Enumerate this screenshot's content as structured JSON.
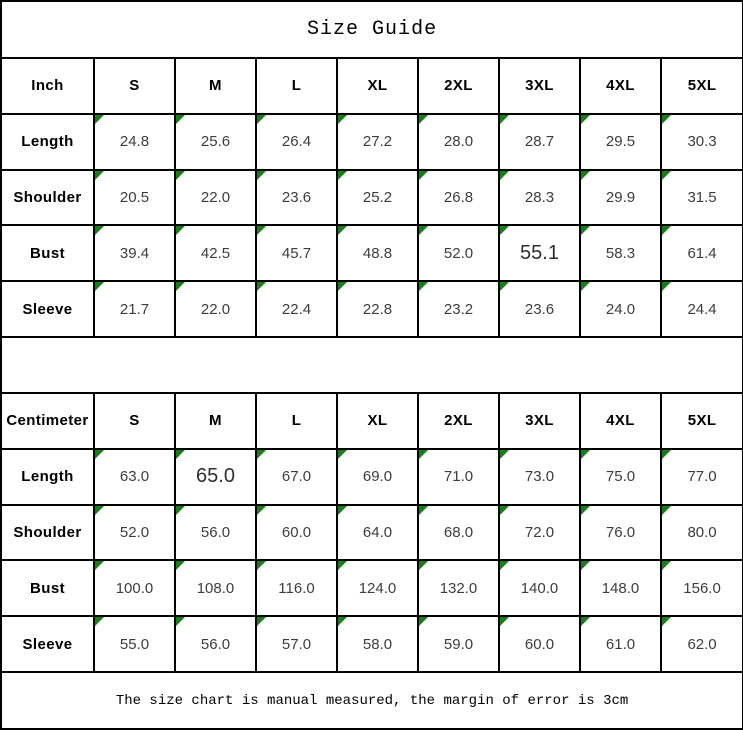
{
  "title": "Size Guide",
  "footer": "The size chart is manual measured, the margin of error is 3cm",
  "colors": {
    "border": "#000000",
    "marker_green": "#1a7d1a",
    "value_text": "#3d3d3d",
    "label_text": "#000000",
    "background": "#ffffff"
  },
  "tables": [
    {
      "unit_label": "Inch",
      "sizes": [
        "S",
        "M",
        "L",
        "XL",
        "2XL",
        "3XL",
        "4XL",
        "5XL"
      ],
      "rows": [
        {
          "label": "Length",
          "values": [
            "24.8",
            "25.6",
            "26.4",
            "27.2",
            "28.0",
            "28.7",
            "29.5",
            "30.3"
          ]
        },
        {
          "label": "Shoulder",
          "values": [
            "20.5",
            "22.0",
            "23.6",
            "25.2",
            "26.8",
            "28.3",
            "29.9",
            "31.5"
          ]
        },
        {
          "label": "Bust",
          "values": [
            "39.4",
            "42.5",
            "45.7",
            "48.8",
            "52.0",
            "55.1",
            "58.3",
            "61.4"
          ]
        },
        {
          "label": "Sleeve",
          "values": [
            "21.7",
            "22.0",
            "22.4",
            "22.8",
            "23.2",
            "23.6",
            "24.0",
            "24.4"
          ]
        }
      ]
    },
    {
      "unit_label": "Centimeter",
      "sizes": [
        "S",
        "M",
        "L",
        "XL",
        "2XL",
        "3XL",
        "4XL",
        "5XL"
      ],
      "rows": [
        {
          "label": "Length",
          "values": [
            "63.0",
            "65.0",
            "67.0",
            "69.0",
            "71.0",
            "73.0",
            "75.0",
            "77.0"
          ]
        },
        {
          "label": "Shoulder",
          "values": [
            "52.0",
            "56.0",
            "60.0",
            "64.0",
            "68.0",
            "72.0",
            "76.0",
            "80.0"
          ]
        },
        {
          "label": "Bust",
          "values": [
            "100.0",
            "108.0",
            "116.0",
            "124.0",
            "132.0",
            "140.0",
            "148.0",
            "156.0"
          ]
        },
        {
          "label": "Sleeve",
          "values": [
            "55.0",
            "56.0",
            "57.0",
            "58.0",
            "59.0",
            "60.0",
            "61.0",
            "62.0"
          ]
        }
      ]
    }
  ],
  "large_value_cells": [
    {
      "table": 0,
      "row": 2,
      "col": 5
    },
    {
      "table": 1,
      "row": 0,
      "col": 1
    }
  ]
}
